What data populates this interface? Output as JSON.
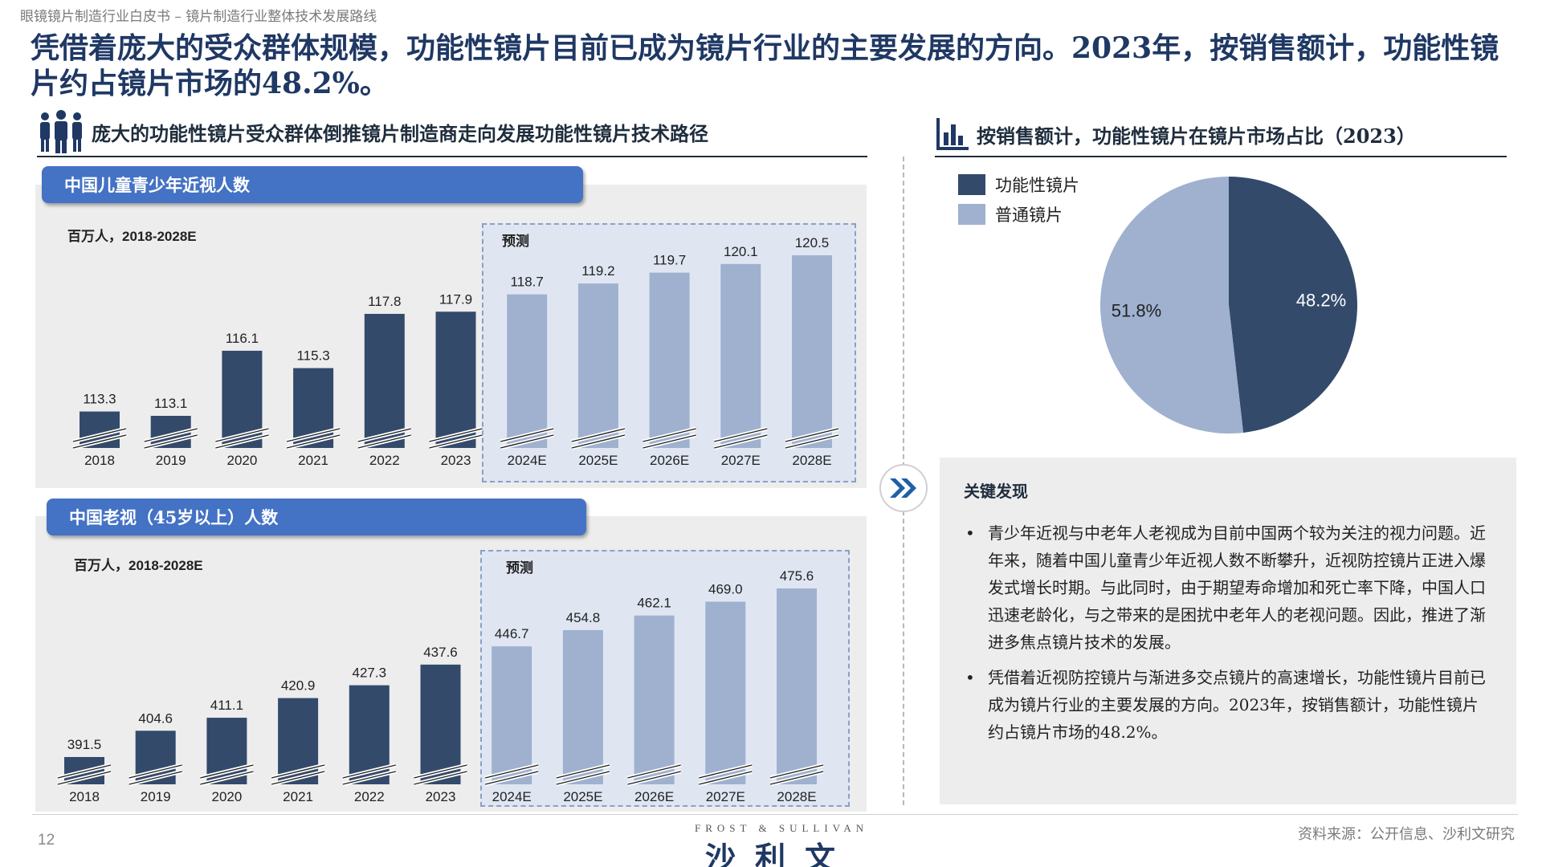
{
  "breadcrumb": "眼镜镜片制造行业白皮书 – 镜片制造行业整体技术发展路线",
  "headline": "凭借着庞大的受众群体规模，功能性镜片目前已成为镜片行业的主要发展的方向。2023年，按销售额计，功能性镜片约占镜片市场的48.2%。",
  "left_section": {
    "title": "庞大的功能性镜片受众群体倒推镜片制造商走向发展功能性镜片技术路径",
    "icon": "people-group-icon"
  },
  "right_section": {
    "title": "按销售额计，功能性镜片在镜片市场占比（2023）",
    "icon": "bar-chart-icon"
  },
  "forecast_label": "预测",
  "arrow_icon": "double-chevron-right-icon",
  "chart_data": [
    {
      "type": "bar",
      "title": "中国儿童青少年近视人数",
      "unit_label": "百万人，2018-2028E",
      "categories": [
        "2018",
        "2019",
        "2020",
        "2021",
        "2022",
        "2023",
        "2024E",
        "2025E",
        "2026E",
        "2027E",
        "2028E"
      ],
      "values": [
        113.3,
        113.1,
        116.1,
        115.3,
        117.8,
        117.9,
        118.7,
        119.2,
        119.7,
        120.1,
        120.5
      ],
      "forecast_from_index": 6,
      "axis_break": true,
      "colors": {
        "actual": "#334a6b",
        "forecast": "#9fb1cf"
      }
    },
    {
      "type": "bar",
      "title": "中国老视（45岁以上）人数",
      "unit_label": "百万人，2018-2028E",
      "categories": [
        "2018",
        "2019",
        "2020",
        "2021",
        "2022",
        "2023",
        "2024E",
        "2025E",
        "2026E",
        "2027E",
        "2028E"
      ],
      "values": [
        391.5,
        404.6,
        411.1,
        420.9,
        427.3,
        437.6,
        446.7,
        454.8,
        462.1,
        469.0,
        475.6
      ],
      "forecast_from_index": 6,
      "axis_break": true,
      "colors": {
        "actual": "#334a6b",
        "forecast": "#9fb1cf"
      }
    },
    {
      "type": "pie",
      "title": "按销售额计，功能性镜片在镜片市场占比（2023）",
      "slices": [
        {
          "name": "功能性镜片",
          "value": 48.2,
          "label": "48.2%",
          "color": "#334a6b"
        },
        {
          "name": "普通镜片",
          "value": 51.8,
          "label": "51.8%",
          "color": "#9fb1cf"
        }
      ],
      "legend": "top-left"
    }
  ],
  "findings": {
    "title": "关键发现",
    "items": [
      "青少年近视与中老年人老视成为目前中国两个较为关注的视力问题。近年来，随着中国儿童青少年近视人数不断攀升，近视防控镜片正进入爆发式增长时期。与此同时，由于期望寿命增加和死亡率下降，中国人口迅速老龄化，与之带来的是困扰中老年人的老视问题。因此，推进了渐进多焦点镜片技术的发展。",
      "凭借着近视防控镜片与渐进多交点镜片的高速增长，功能性镜片目前已成为镜片行业的主要发展的方向。2023年，按销售额计，功能性镜片约占镜片市场的48.2%。"
    ]
  },
  "footer": {
    "page": "12",
    "logo_top": "FROST & SULLIVAN",
    "logo_main": "沙利文",
    "source": "资料来源：公开信息、沙利文研究"
  }
}
